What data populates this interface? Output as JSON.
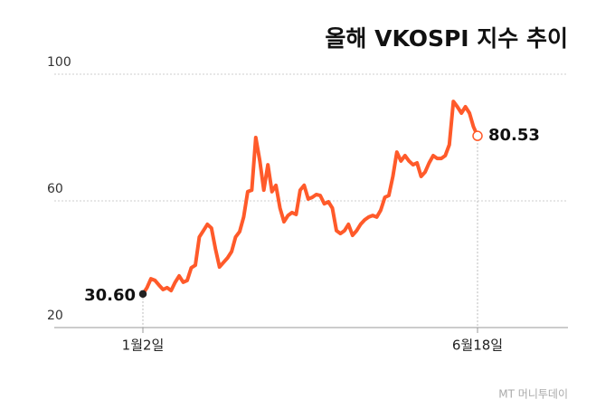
{
  "chart_data": {
    "type": "line",
    "title": "올해 VKOSPI 지수 추이",
    "categories": [
      "1월2일",
      null,
      null,
      null,
      null,
      null,
      null,
      null,
      null,
      null,
      null,
      null,
      null,
      null,
      null,
      null,
      null,
      null,
      null,
      null,
      null,
      null,
      null,
      null,
      null,
      null,
      null,
      null,
      null,
      null,
      null,
      null,
      null,
      null,
      null,
      null,
      null,
      null,
      null,
      null,
      null,
      null,
      null,
      null,
      null,
      null,
      null,
      null,
      null,
      null,
      null,
      null,
      null,
      null,
      null,
      null,
      null,
      null,
      null,
      null,
      null,
      null,
      null,
      null,
      null,
      null,
      null,
      null,
      null,
      null,
      null,
      null,
      null,
      null,
      null,
      null,
      null,
      null,
      null,
      null,
      null,
      null,
      null,
      "6월18일"
    ],
    "series": [
      {
        "name": "VKOSPI",
        "color": "#ff5a2a",
        "values": [
          30.6,
          32.6,
          35.4,
          34.9,
          33.4,
          32,
          32.6,
          31.7,
          34.3,
          36.3,
          34.3,
          34.9,
          38.9,
          39.7,
          48.6,
          50.6,
          52.6,
          51.4,
          44.9,
          39.1,
          40.6,
          42,
          44,
          48.6,
          50.3,
          54.9,
          62.9,
          63.4,
          80,
          72.6,
          63.4,
          71.4,
          62.9,
          64.9,
          57.7,
          53.4,
          55.4,
          56.3,
          55.7,
          63.4,
          64.9,
          60.6,
          61.1,
          62,
          61.7,
          59.1,
          59.7,
          57.7,
          50.6,
          49.7,
          50.6,
          52.6,
          49.1,
          50.6,
          52.6,
          54,
          54.9,
          55.4,
          54.9,
          57.1,
          61.1,
          61.7,
          67.7,
          75.4,
          72.6,
          74.3,
          72.6,
          71.4,
          72,
          67.7,
          69.1,
          72,
          74.3,
          73.4,
          73.4,
          74.3,
          77.7,
          91.4,
          89.7,
          87.7,
          89.7,
          87.7,
          83.4,
          80.53
        ],
        "value_labels": [
          "30.60",
          null,
          null,
          null,
          null,
          null,
          null,
          null,
          null,
          null,
          null,
          null,
          null,
          null,
          null,
          null,
          null,
          null,
          null,
          null,
          null,
          null,
          null,
          null,
          null,
          null,
          null,
          null,
          null,
          null,
          null,
          null,
          null,
          null,
          null,
          null,
          null,
          null,
          null,
          null,
          null,
          null,
          null,
          null,
          null,
          null,
          null,
          null,
          null,
          null,
          null,
          null,
          null,
          null,
          null,
          null,
          null,
          null,
          null,
          null,
          null,
          null,
          null,
          null,
          null,
          null,
          null,
          null,
          null,
          null,
          null,
          null,
          null,
          null,
          null,
          null,
          null,
          null,
          null,
          null,
          null,
          null,
          null,
          "80.53"
        ]
      }
    ],
    "ylim": [
      20,
      100
    ],
    "yticks": [
      20,
      60,
      100
    ],
    "grid": true,
    "watermark": "MT 머니투데이"
  }
}
